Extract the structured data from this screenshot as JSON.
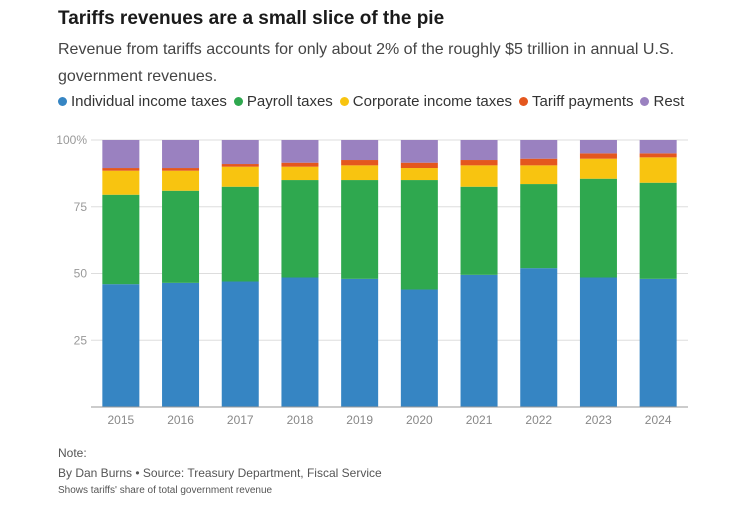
{
  "title": "Tariffs revenues are a small slice of the pie",
  "subtitle": "Revenue from tariffs accounts for only about 2% of the roughly $5 trillion in annual U.S. government revenues.",
  "footer": {
    "note_label": "Note:",
    "credit": "By Dan Burns • Source: Treasury Department, Fiscal Service",
    "footnote": "Shows tariffs' share of total government revenue"
  },
  "chart_data": {
    "type": "bar",
    "stacked": true,
    "categories": [
      "2015",
      "2016",
      "2017",
      "2018",
      "2019",
      "2020",
      "2021",
      "2022",
      "2023",
      "2024"
    ],
    "y_ticks": [
      25,
      50,
      75,
      100
    ],
    "y_tick_labels": [
      "25",
      "50",
      "75",
      "100%"
    ],
    "ylim": [
      0,
      100
    ],
    "grid": true,
    "legend_position": "top-left",
    "series": [
      {
        "name": "Individual income taxes",
        "color": "#3685c3",
        "values": [
          46,
          46.5,
          47,
          48.5,
          48,
          44,
          49.5,
          52,
          48.5,
          48
        ]
      },
      {
        "name": "Payroll taxes",
        "color": "#2fa84f",
        "values": [
          33.5,
          34.5,
          35.5,
          36.5,
          37,
          41,
          33,
          31.5,
          37,
          36
        ]
      },
      {
        "name": "Corporate income taxes",
        "color": "#f8c410",
        "values": [
          9,
          7.5,
          7.5,
          5,
          5.5,
          4.5,
          8,
          7,
          7.5,
          9.5
        ]
      },
      {
        "name": "Tariff payments",
        "color": "#e4571e",
        "values": [
          1,
          1,
          1,
          1.5,
          2,
          2,
          2,
          2.5,
          2,
          1.5
        ]
      },
      {
        "name": "Rest",
        "color": "#9a81c0",
        "values": [
          10.5,
          10.5,
          9,
          8.5,
          7.5,
          8.5,
          7.5,
          7,
          5,
          5
        ]
      }
    ]
  }
}
